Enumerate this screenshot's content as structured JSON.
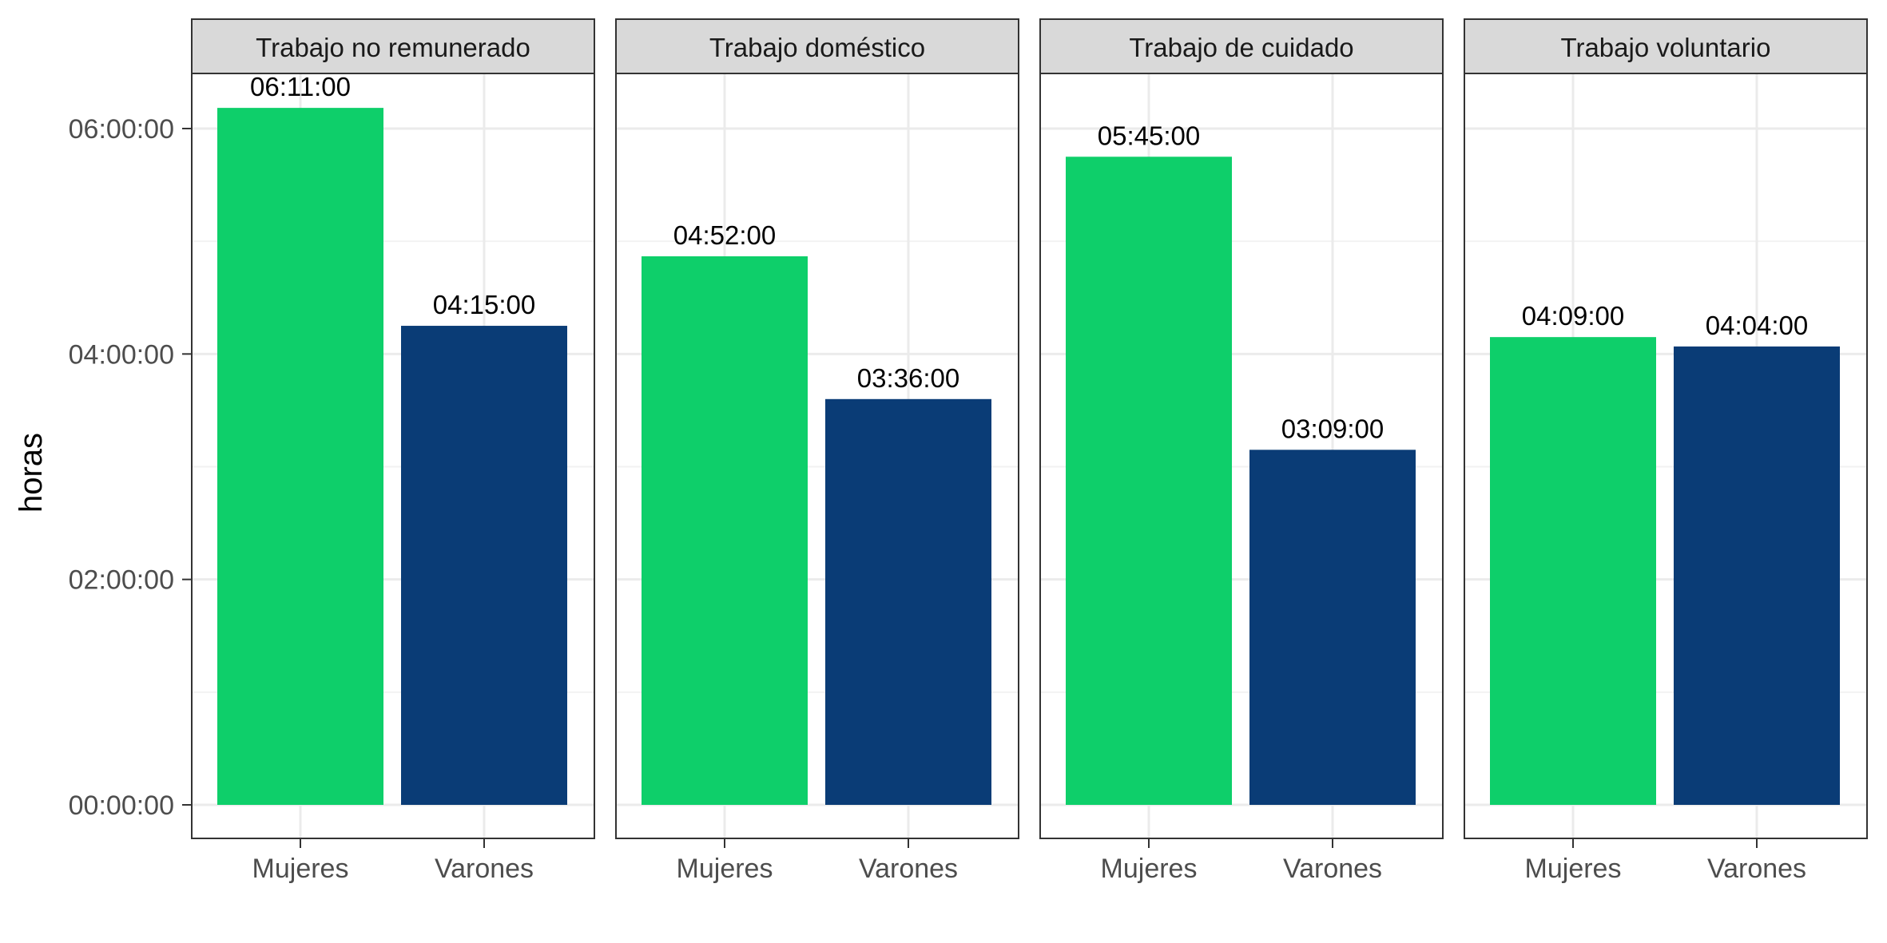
{
  "chart_data": {
    "type": "bar",
    "ylabel": "horas",
    "ylim_seconds": [
      0,
      23400
    ],
    "y_ticks": [
      "00:00:00",
      "02:00:00",
      "04:00:00",
      "06:00:00"
    ],
    "categories": [
      "Mujeres",
      "Varones"
    ],
    "panels": [
      {
        "title": "Trabajo no remunerado",
        "values": [
          "06:11:00",
          "04:15:00"
        ],
        "labels": [
          "06:11:00",
          "04:15:00"
        ]
      },
      {
        "title": "Trabajo doméstico",
        "values": [
          "04:52:00",
          "03:36:00"
        ],
        "labels": [
          "04:52:00",
          "03:36:00"
        ]
      },
      {
        "title": "Trabajo de cuidado",
        "values": [
          "05:45:00",
          "03:09:00"
        ],
        "labels": [
          "05:45:00",
          "03:09:00"
        ]
      },
      {
        "title": "Trabajo voluntario",
        "values": [
          "04:09:00",
          "04:04:00"
        ],
        "labels": [
          "04:09:00",
          "04:04:00"
        ]
      }
    ],
    "colors": {
      "Mujeres": "#0ecf6a",
      "Varones": "#0a3c76"
    },
    "grid": true,
    "legend": "none"
  }
}
